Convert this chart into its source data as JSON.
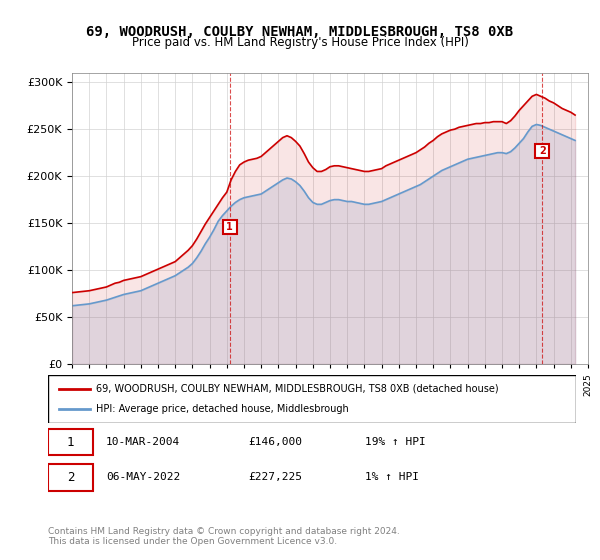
{
  "title": "69, WOODRUSH, COULBY NEWHAM, MIDDLESBROUGH, TS8 0XB",
  "subtitle": "Price paid vs. HM Land Registry's House Price Index (HPI)",
  "legend_line1": "69, WOODRUSH, COULBY NEWHAM, MIDDLESBROUGH, TS8 0XB (detached house)",
  "legend_line2": "HPI: Average price, detached house, Middlesbrough",
  "annotation1_num": "1",
  "annotation1_date": "10-MAR-2004",
  "annotation1_price": "£146,000",
  "annotation1_hpi": "19% ↑ HPI",
  "annotation2_num": "2",
  "annotation2_date": "06-MAY-2022",
  "annotation2_price": "£227,225",
  "annotation2_hpi": "1% ↑ HPI",
  "footer": "Contains HM Land Registry data © Crown copyright and database right 2024.\nThis data is licensed under the Open Government Licence v3.0.",
  "red_color": "#cc0000",
  "blue_color": "#6699cc",
  "marker_color": "#cc0000",
  "annotation_box_color": "#cc0000",
  "ylim": [
    0,
    310000
  ],
  "yticks": [
    0,
    50000,
    100000,
    150000,
    200000,
    250000,
    300000
  ],
  "hpi_data": {
    "dates": [
      1995.0,
      1995.25,
      1995.5,
      1995.75,
      1996.0,
      1996.25,
      1996.5,
      1996.75,
      1997.0,
      1997.25,
      1997.5,
      1997.75,
      1998.0,
      1998.25,
      1998.5,
      1998.75,
      1999.0,
      1999.25,
      1999.5,
      1999.75,
      2000.0,
      2000.25,
      2000.5,
      2000.75,
      2001.0,
      2001.25,
      2001.5,
      2001.75,
      2002.0,
      2002.25,
      2002.5,
      2002.75,
      2003.0,
      2003.25,
      2003.5,
      2003.75,
      2004.0,
      2004.25,
      2004.5,
      2004.75,
      2005.0,
      2005.25,
      2005.5,
      2005.75,
      2006.0,
      2006.25,
      2006.5,
      2006.75,
      2007.0,
      2007.25,
      2007.5,
      2007.75,
      2008.0,
      2008.25,
      2008.5,
      2008.75,
      2009.0,
      2009.25,
      2009.5,
      2009.75,
      2010.0,
      2010.25,
      2010.5,
      2010.75,
      2011.0,
      2011.25,
      2011.5,
      2011.75,
      2012.0,
      2012.25,
      2012.5,
      2012.75,
      2013.0,
      2013.25,
      2013.5,
      2013.75,
      2014.0,
      2014.25,
      2014.5,
      2014.75,
      2015.0,
      2015.25,
      2015.5,
      2015.75,
      2016.0,
      2016.25,
      2016.5,
      2016.75,
      2017.0,
      2017.25,
      2017.5,
      2017.75,
      2018.0,
      2018.25,
      2018.5,
      2018.75,
      2019.0,
      2019.25,
      2019.5,
      2019.75,
      2020.0,
      2020.25,
      2020.5,
      2020.75,
      2021.0,
      2021.25,
      2021.5,
      2021.75,
      2022.0,
      2022.25,
      2022.5,
      2022.75,
      2023.0,
      2023.25,
      2023.5,
      2023.75,
      2024.0,
      2024.25
    ],
    "values": [
      62000,
      62500,
      63000,
      63500,
      64000,
      65000,
      66000,
      67000,
      68000,
      69500,
      71000,
      72500,
      74000,
      75000,
      76000,
      77000,
      78000,
      80000,
      82000,
      84000,
      86000,
      88000,
      90000,
      92000,
      94000,
      97000,
      100000,
      103000,
      107000,
      113000,
      120000,
      128000,
      135000,
      143000,
      152000,
      158000,
      163000,
      168000,
      172000,
      175000,
      177000,
      178000,
      179000,
      180000,
      181000,
      184000,
      187000,
      190000,
      193000,
      196000,
      198000,
      197000,
      194000,
      190000,
      184000,
      177000,
      172000,
      170000,
      170000,
      172000,
      174000,
      175000,
      175000,
      174000,
      173000,
      173000,
      172000,
      171000,
      170000,
      170000,
      171000,
      172000,
      173000,
      175000,
      177000,
      179000,
      181000,
      183000,
      185000,
      187000,
      189000,
      191000,
      194000,
      197000,
      200000,
      203000,
      206000,
      208000,
      210000,
      212000,
      214000,
      216000,
      218000,
      219000,
      220000,
      221000,
      222000,
      223000,
      224000,
      225000,
      225000,
      224000,
      226000,
      230000,
      235000,
      240000,
      247000,
      253000,
      255000,
      254000,
      252000,
      250000,
      248000,
      246000,
      244000,
      242000,
      240000,
      238000
    ]
  },
  "red_data": {
    "dates": [
      1995.0,
      1995.25,
      1995.5,
      1995.75,
      1996.0,
      1996.25,
      1996.5,
      1996.75,
      1997.0,
      1997.25,
      1997.5,
      1997.75,
      1998.0,
      1998.25,
      1998.5,
      1998.75,
      1999.0,
      1999.25,
      1999.5,
      1999.75,
      2000.0,
      2000.25,
      2000.5,
      2000.75,
      2001.0,
      2001.25,
      2001.5,
      2001.75,
      2002.0,
      2002.25,
      2002.5,
      2002.75,
      2003.0,
      2003.25,
      2003.5,
      2003.75,
      2004.0,
      2004.25,
      2004.5,
      2004.75,
      2005.0,
      2005.25,
      2005.5,
      2005.75,
      2006.0,
      2006.25,
      2006.5,
      2006.75,
      2007.0,
      2007.25,
      2007.5,
      2007.75,
      2008.0,
      2008.25,
      2008.5,
      2008.75,
      2009.0,
      2009.25,
      2009.5,
      2009.75,
      2010.0,
      2010.25,
      2010.5,
      2010.75,
      2011.0,
      2011.25,
      2011.5,
      2011.75,
      2012.0,
      2012.25,
      2012.5,
      2012.75,
      2013.0,
      2013.25,
      2013.5,
      2013.75,
      2014.0,
      2014.25,
      2014.5,
      2014.75,
      2015.0,
      2015.25,
      2015.5,
      2015.75,
      2016.0,
      2016.25,
      2016.5,
      2016.75,
      2017.0,
      2017.25,
      2017.5,
      2017.75,
      2018.0,
      2018.25,
      2018.5,
      2018.75,
      2019.0,
      2019.25,
      2019.5,
      2019.75,
      2020.0,
      2020.25,
      2020.5,
      2020.75,
      2021.0,
      2021.25,
      2021.5,
      2021.75,
      2022.0,
      2022.25,
      2022.5,
      2022.75,
      2023.0,
      2023.25,
      2023.5,
      2023.75,
      2024.0,
      2024.25
    ],
    "values": [
      76000,
      76500,
      77000,
      77500,
      78000,
      79000,
      80000,
      81000,
      82000,
      84000,
      86000,
      87000,
      89000,
      90000,
      91000,
      92000,
      93000,
      95000,
      97000,
      99000,
      101000,
      103000,
      105000,
      107000,
      109000,
      113000,
      117000,
      121000,
      126000,
      133000,
      141000,
      149000,
      156000,
      163000,
      170000,
      177000,
      183000,
      196000,
      205000,
      212000,
      215000,
      217000,
      218000,
      219000,
      221000,
      225000,
      229000,
      233000,
      237000,
      241000,
      243000,
      241000,
      237000,
      232000,
      224000,
      215000,
      209000,
      205000,
      205000,
      207000,
      210000,
      211000,
      211000,
      210000,
      209000,
      208000,
      207000,
      206000,
      205000,
      205000,
      206000,
      207000,
      208000,
      211000,
      213000,
      215000,
      217000,
      219000,
      221000,
      223000,
      225000,
      228000,
      231000,
      235000,
      238000,
      242000,
      245000,
      247000,
      249000,
      250000,
      252000,
      253000,
      254000,
      255000,
      256000,
      256000,
      257000,
      257000,
      258000,
      258000,
      258000,
      256000,
      259000,
      264000,
      270000,
      275000,
      280000,
      285000,
      287000,
      285000,
      283000,
      280000,
      278000,
      275000,
      272000,
      270000,
      268000,
      265000
    ]
  },
  "sale1_date": 2004.167,
  "sale1_price": 146000,
  "sale2_date": 2022.333,
  "sale2_price": 227225,
  "xmin": 1995,
  "xmax": 2025
}
